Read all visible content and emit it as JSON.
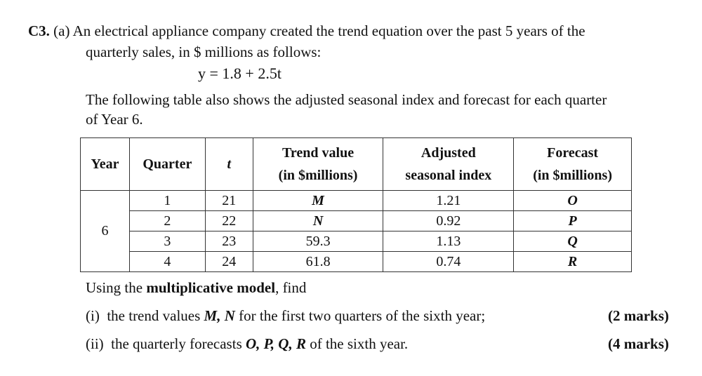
{
  "question": {
    "number": "C3.",
    "part": "(a)",
    "intro_line1": "An electrical appliance company created the trend equation over the past 5 years of the",
    "intro_line2": "quarterly sales, in $ millions as follows:",
    "equation": "y = 1.8 + 2.5t",
    "para_line1": "The following table also shows the adjusted seasonal index and forecast for each quarter",
    "para_line2": "of Year 6."
  },
  "table": {
    "headers": {
      "year": "Year",
      "quarter": "Quarter",
      "t": "t",
      "trend_line1": "Trend value",
      "trend_line2": "(in $millions)",
      "adjusted_line1": "Adjusted",
      "adjusted_line2": "seasonal index",
      "forecast_line1": "Forecast",
      "forecast_line2": "(in $millions)"
    },
    "year_value": "6",
    "rows": [
      {
        "quarter": "1",
        "t": "21",
        "trend": "M",
        "index": "1.21",
        "forecast": "O"
      },
      {
        "quarter": "2",
        "t": "22",
        "trend": "N",
        "index": "0.92",
        "forecast": "P"
      },
      {
        "quarter": "3",
        "t": "23",
        "trend": "59.3",
        "index": "1.13",
        "forecast": "Q"
      },
      {
        "quarter": "4",
        "t": "24",
        "trend": "61.8",
        "index": "0.74",
        "forecast": "R"
      }
    ]
  },
  "tasks": {
    "using_prefix": "Using the",
    "using_bold": "multiplicative model",
    "using_suffix": ", find",
    "items": [
      {
        "label": "(i)",
        "prefix": "the trend values",
        "vars": "M, N",
        "suffix": "for the first two quarters of the sixth year;",
        "marks": "(2 marks)"
      },
      {
        "label": "(ii)",
        "prefix": "the quarterly forecasts",
        "vars": "O, P, Q, R",
        "suffix": "of the sixth year.",
        "marks": "(4 marks)"
      }
    ]
  }
}
